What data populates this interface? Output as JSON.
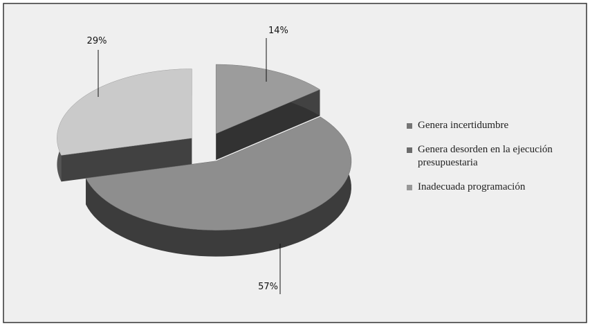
{
  "chart_data": {
    "type": "pie",
    "categories": [
      "Genera incertidumbre",
      "Genera desorden en la ejecución presupuestaria",
      "Inadecuada programación"
    ],
    "values": [
      14,
      57,
      29
    ],
    "value_labels": [
      "14%",
      "57%",
      "29%"
    ],
    "colors": [
      "#9c9c9c",
      "#8e8e8e",
      "#cacaca"
    ],
    "legend": "right"
  }
}
